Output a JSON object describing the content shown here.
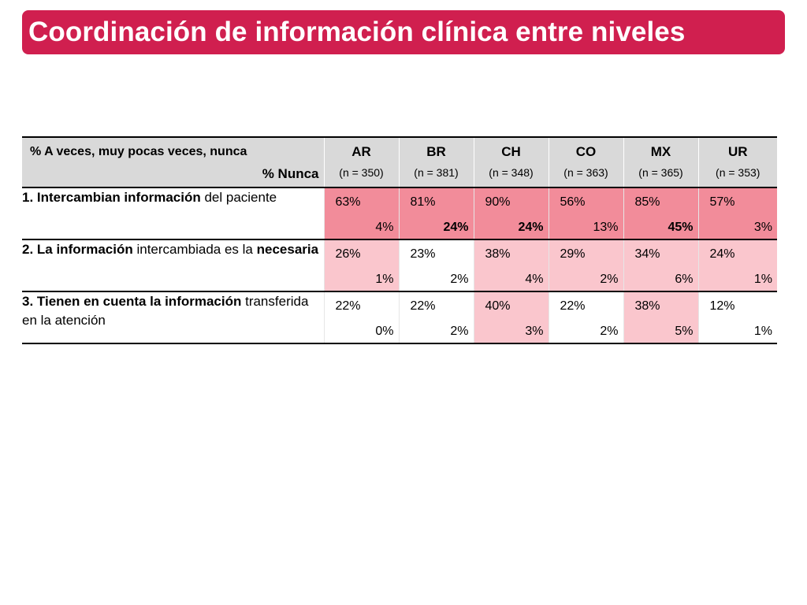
{
  "title": "Coordinación de información clínica entre niveles",
  "table": {
    "header_label_line1": "% A veces, muy pocas veces, nunca",
    "header_label_line2": "% Nunca",
    "columns": [
      {
        "code": "AR",
        "n": "(n = 350)"
      },
      {
        "code": "BR",
        "n": "(n = 381)"
      },
      {
        "code": "CH",
        "n": "(n = 348)"
      },
      {
        "code": "CO",
        "n": "(n = 363)"
      },
      {
        "code": "MX",
        "n": "(n = 365)"
      },
      {
        "code": "UR",
        "n": "(n = 353)"
      }
    ],
    "rows": [
      {
        "label_bold": "1. Intercambian información",
        "label_rest": " del paciente",
        "cells": [
          {
            "top": "63%",
            "bottom": "4%",
            "bottom_bold": false,
            "shade": 2
          },
          {
            "top": "81%",
            "bottom": "24%",
            "bottom_bold": true,
            "shade": 2
          },
          {
            "top": "90%",
            "bottom": "24%",
            "bottom_bold": true,
            "shade": 2
          },
          {
            "top": "56%",
            "bottom": "13%",
            "bottom_bold": false,
            "shade": 2
          },
          {
            "top": "85%",
            "bottom": "45%",
            "bottom_bold": true,
            "shade": 2
          },
          {
            "top": "57%",
            "bottom": "3%",
            "bottom_bold": false,
            "shade": 2
          }
        ]
      },
      {
        "label_bold": "2. La información",
        "label_rest": " intercambiada es la ",
        "label_bold2": "necesaria",
        "cells": [
          {
            "top": "26%",
            "bottom": "1%",
            "bottom_bold": false,
            "shade": 1
          },
          {
            "top": "23%",
            "bottom": "2%",
            "bottom_bold": false,
            "shade": 0
          },
          {
            "top": "38%",
            "bottom": "4%",
            "bottom_bold": false,
            "shade": 1
          },
          {
            "top": "29%",
            "bottom": "2%",
            "bottom_bold": false,
            "shade": 1
          },
          {
            "top": "34%",
            "bottom": "6%",
            "bottom_bold": false,
            "shade": 1
          },
          {
            "top": "24%",
            "bottom": "1%",
            "bottom_bold": false,
            "shade": 1
          }
        ]
      },
      {
        "label_bold": "3. Tienen en cuenta la información",
        "label_rest": " transferida en la atención",
        "cells": [
          {
            "top": "22%",
            "bottom": "0%",
            "bottom_bold": false,
            "shade": 0
          },
          {
            "top": "22%",
            "bottom": "2%",
            "bottom_bold": false,
            "shade": 0
          },
          {
            "top": "40%",
            "bottom": "3%",
            "bottom_bold": false,
            "shade": 1
          },
          {
            "top": "22%",
            "bottom": "2%",
            "bottom_bold": false,
            "shade": 0
          },
          {
            "top": "38%",
            "bottom": "5%",
            "bottom_bold": false,
            "shade": 1
          },
          {
            "top": "12%",
            "bottom": "1%",
            "bottom_bold": false,
            "shade": 0
          }
        ]
      }
    ]
  },
  "colors": {
    "title_background": "#d01f4f",
    "header_background": "#d9d9d9",
    "shade_light": "#fac6cd",
    "shade_medium": "#f28c9a"
  }
}
